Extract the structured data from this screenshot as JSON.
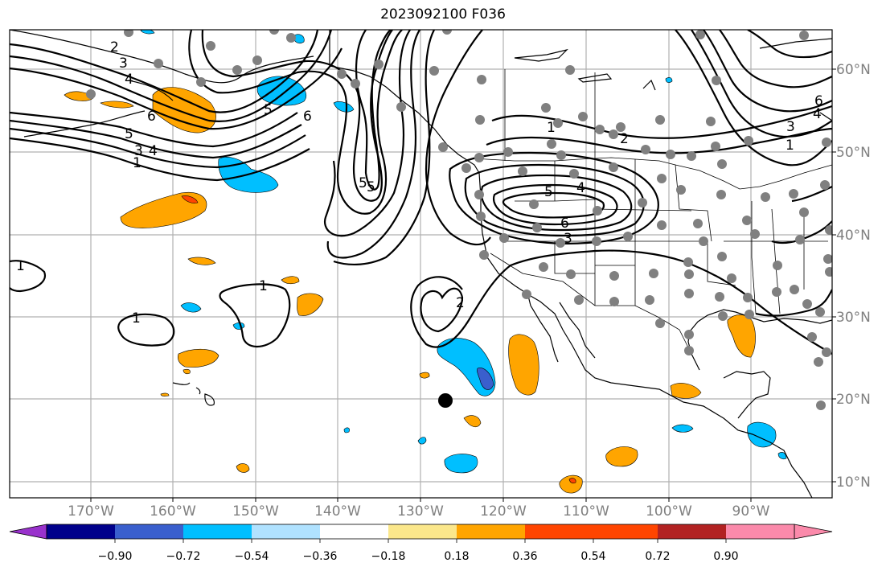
{
  "title": "2023092100 F036",
  "map": {
    "lon_ticks": [
      "170°W",
      "160°W",
      "150°W",
      "140°W",
      "130°W",
      "120°W",
      "110°W",
      "100°W",
      "90°W"
    ],
    "lat_ticks": [
      "60°N",
      "50°N",
      "40°N",
      "30°N",
      "20°N",
      "10°N"
    ],
    "contour_labels": [
      {
        "text": "2"
      },
      {
        "text": "3"
      },
      {
        "text": "4"
      },
      {
        "text": "6"
      },
      {
        "text": "5"
      },
      {
        "text": "5"
      },
      {
        "text": "6"
      },
      {
        "text": "1"
      },
      {
        "text": "3"
      },
      {
        "text": "4"
      },
      {
        "text": "5"
      },
      {
        "text": "1"
      },
      {
        "text": "1"
      },
      {
        "text": "1"
      },
      {
        "text": "5"
      },
      {
        "text": "2"
      },
      {
        "text": "1"
      },
      {
        "text": "2"
      },
      {
        "text": "5"
      },
      {
        "text": "4"
      },
      {
        "text": "6"
      },
      {
        "text": "3"
      },
      {
        "text": "6"
      },
      {
        "text": "4"
      },
      {
        "text": "3"
      },
      {
        "text": "1"
      }
    ]
  },
  "colorbar": {
    "colors": [
      "#9932cc",
      "#00008b",
      "#3a5fcd",
      "#00bfff",
      "#b0e2ff",
      "#ffffff",
      "#fbe78b",
      "#ffa500",
      "#ff4500",
      "#b22222",
      "#fb8aab"
    ],
    "labels": [
      "−0.90",
      "−0.72",
      "−0.54",
      "−0.36",
      "−0.18",
      "0.18",
      "0.36",
      "0.54",
      "0.72",
      "0.90"
    ]
  }
}
